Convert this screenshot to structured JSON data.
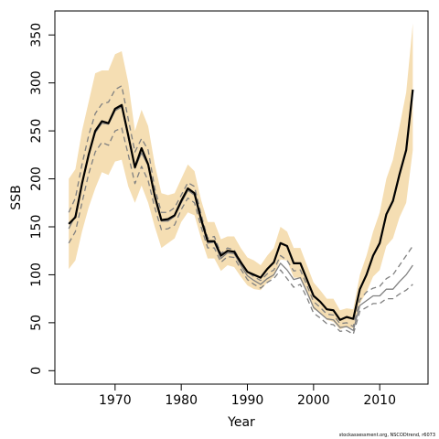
{
  "chart_data": {
    "type": "line",
    "xlabel": "Year",
    "ylabel": "SSB",
    "footnote": "stockassessment.org, NSCODtrend, r6073",
    "x": [
      1963,
      1964,
      1965,
      1966,
      1967,
      1968,
      1969,
      1970,
      1971,
      1972,
      1973,
      1974,
      1975,
      1976,
      1977,
      1978,
      1979,
      1980,
      1981,
      1982,
      1983,
      1984,
      1985,
      1986,
      1987,
      1988,
      1989,
      1990,
      1991,
      1992,
      1993,
      1994,
      1995,
      1996,
      1997,
      1998,
      1999,
      2000,
      2001,
      2002,
      2003,
      2004,
      2005,
      2006,
      2007,
      2008,
      2009,
      2010,
      2011,
      2012,
      2013,
      2014,
      2015
    ],
    "band": {
      "color": "#f5deb3",
      "upper": [
        200,
        210,
        250,
        280,
        310,
        313,
        313,
        330,
        333,
        300,
        250,
        272,
        255,
        215,
        185,
        183,
        185,
        200,
        215,
        208,
        178,
        155,
        155,
        137,
        140,
        140,
        128,
        118,
        115,
        110,
        120,
        128,
        150,
        145,
        128,
        128,
        110,
        92,
        84,
        75,
        75,
        63,
        65,
        64,
        100,
        120,
        145,
        165,
        200,
        220,
        255,
        290,
        362
      ],
      "lower": [
        106,
        115,
        145,
        170,
        190,
        207,
        204,
        218,
        220,
        192,
        175,
        193,
        175,
        150,
        128,
        133,
        138,
        155,
        165,
        162,
        138,
        117,
        117,
        104,
        110,
        108,
        98,
        89,
        85,
        84,
        92,
        98,
        116,
        115,
        97,
        97,
        81,
        64,
        61,
        53,
        51,
        43,
        46,
        44,
        70,
        82,
        98,
        105,
        130,
        138,
        160,
        175,
        230
      ]
    },
    "series": [
      {
        "color": "#808080",
        "linestyle": "dashed",
        "linewidth": 1.3,
        "values": [
          165,
          180,
          215,
          245,
          268,
          278,
          280,
          293,
          297,
          262,
          228,
          242,
          230,
          190,
          165,
          165,
          170,
          183,
          196,
          192,
          163,
          138,
          140,
          122,
          128,
          126,
          114,
          103,
          98,
          94,
          101,
          105,
          120,
          115,
          104,
          105,
          89,
          72,
          66,
          59,
          58,
          49,
          50,
          46,
          74,
          82,
          86,
          88,
          96,
          100,
          110,
          120,
          130
        ]
      },
      {
        "color": "#808080",
        "linestyle": "dashed",
        "linewidth": 1.3,
        "values": [
          133,
          145,
          175,
          205,
          228,
          238,
          235,
          250,
          253,
          225,
          195,
          213,
          198,
          170,
          147,
          148,
          152,
          168,
          180,
          175,
          150,
          128,
          128,
          113,
          119,
          118,
          106,
          95,
          90,
          86,
          92,
          96,
          105,
          96,
          87,
          90,
          76,
          60,
          55,
          49,
          48,
          41,
          42,
          38,
          62,
          66,
          70,
          70,
          75,
          75,
          80,
          84,
          90
        ]
      },
      {
        "color": "#808080",
        "linestyle": "solid",
        "linewidth": 1.3,
        "values": [
          148,
          162,
          195,
          225,
          248,
          258,
          257,
          271,
          275,
          243,
          211,
          227,
          214,
          180,
          156,
          156,
          161,
          175,
          188,
          183,
          156,
          133,
          134,
          117,
          123,
          122,
          110,
          99,
          94,
          90,
          96,
          100,
          112,
          105,
          95,
          97,
          82,
          66,
          60,
          54,
          53,
          45,
          46,
          42,
          68,
          73,
          78,
          78,
          85,
          85,
          93,
          100,
          110
        ]
      },
      {
        "color": "#000000",
        "linestyle": "solid",
        "linewidth": 2.2,
        "values": [
          153,
          160,
          195,
          225,
          250,
          260,
          258,
          273,
          277,
          245,
          212,
          232,
          215,
          182,
          157,
          158,
          162,
          177,
          190,
          185,
          158,
          135,
          135,
          120,
          125,
          124,
          113,
          103,
          100,
          97,
          106,
          113,
          133,
          130,
          112,
          112,
          95,
          78,
          72,
          64,
          63,
          53,
          56,
          54,
          85,
          100,
          120,
          133,
          163,
          177,
          205,
          230,
          293
        ]
      }
    ],
    "xlim": [
      1960.9,
      2017.3
    ],
    "xticks": [
      1970,
      1980,
      1990,
      2000,
      2010
    ],
    "ylim": [
      -14,
      375
    ],
    "yticks": [
      0,
      50,
      100,
      150,
      200,
      250,
      300,
      350
    ]
  }
}
